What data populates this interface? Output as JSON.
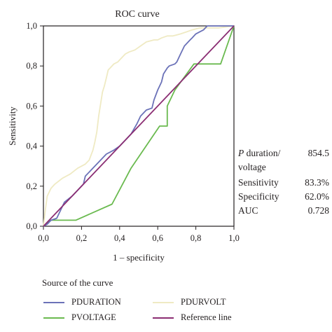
{
  "chart_data": {
    "type": "line",
    "title": "ROC curve",
    "xlabel": "1 – specificity",
    "ylabel": "Sensitivity",
    "xlim": [
      0,
      1
    ],
    "ylim": [
      0,
      1
    ],
    "xticks": [
      "0,0",
      "0,2",
      "0,4",
      "0,6",
      "0,8",
      "1,0"
    ],
    "yticks": [
      "0,0",
      "0,2",
      "0,4",
      "0,6",
      "0,8",
      "1,0"
    ],
    "grid": false,
    "legend_title": "Source of the curve",
    "legend_position": "bottom",
    "series": [
      {
        "name": "PDURATION",
        "color": "#6b72b8",
        "points": [
          [
            0,
            0
          ],
          [
            0.02,
            0.01
          ],
          [
            0.04,
            0.03
          ],
          [
            0.07,
            0.04
          ],
          [
            0.09,
            0.08
          ],
          [
            0.11,
            0.12
          ],
          [
            0.15,
            0.15
          ],
          [
            0.18,
            0.18
          ],
          [
            0.21,
            0.21
          ],
          [
            0.22,
            0.25
          ],
          [
            0.25,
            0.28
          ],
          [
            0.28,
            0.31
          ],
          [
            0.3,
            0.33
          ],
          [
            0.33,
            0.36
          ],
          [
            0.37,
            0.38
          ],
          [
            0.4,
            0.4
          ],
          [
            0.43,
            0.43
          ],
          [
            0.46,
            0.46
          ],
          [
            0.49,
            0.51
          ],
          [
            0.51,
            0.55
          ],
          [
            0.54,
            0.58
          ],
          [
            0.57,
            0.59
          ],
          [
            0.58,
            0.63
          ],
          [
            0.6,
            0.68
          ],
          [
            0.62,
            0.72
          ],
          [
            0.63,
            0.76
          ],
          [
            0.65,
            0.79
          ],
          [
            0.66,
            0.8
          ],
          [
            0.69,
            0.81
          ],
          [
            0.7,
            0.82
          ],
          [
            0.72,
            0.86
          ],
          [
            0.74,
            0.9
          ],
          [
            0.77,
            0.93
          ],
          [
            0.78,
            0.94
          ],
          [
            0.8,
            0.96
          ],
          [
            0.82,
            0.97
          ],
          [
            0.84,
            0.98
          ],
          [
            0.86,
            1.0
          ],
          [
            0.9,
            1.0
          ],
          [
            1.0,
            1.0
          ]
        ]
      },
      {
        "name": "PVOLTAGE",
        "color": "#6aba4f",
        "points": [
          [
            0,
            0
          ],
          [
            0.04,
            0.03
          ],
          [
            0.17,
            0.03
          ],
          [
            0.36,
            0.11
          ],
          [
            0.46,
            0.29
          ],
          [
            0.61,
            0.5
          ],
          [
            0.65,
            0.5
          ],
          [
            0.65,
            0.6
          ],
          [
            0.69,
            0.68
          ],
          [
            0.79,
            0.81
          ],
          [
            0.86,
            0.81
          ],
          [
            0.93,
            0.81
          ],
          [
            1.0,
            1.0
          ]
        ]
      },
      {
        "name": "PDURVOLT",
        "color": "#efeac3",
        "points": [
          [
            0,
            0
          ],
          [
            0.01,
            0.08
          ],
          [
            0.02,
            0.15
          ],
          [
            0.04,
            0.19
          ],
          [
            0.06,
            0.21
          ],
          [
            0.1,
            0.24
          ],
          [
            0.14,
            0.26
          ],
          [
            0.18,
            0.29
          ],
          [
            0.2,
            0.3
          ],
          [
            0.22,
            0.31
          ],
          [
            0.24,
            0.33
          ],
          [
            0.26,
            0.38
          ],
          [
            0.27,
            0.42
          ],
          [
            0.28,
            0.47
          ],
          [
            0.29,
            0.55
          ],
          [
            0.3,
            0.61
          ],
          [
            0.31,
            0.67
          ],
          [
            0.32,
            0.7
          ],
          [
            0.33,
            0.74
          ],
          [
            0.34,
            0.78
          ],
          [
            0.35,
            0.79
          ],
          [
            0.37,
            0.81
          ],
          [
            0.39,
            0.82
          ],
          [
            0.41,
            0.84
          ],
          [
            0.43,
            0.86
          ],
          [
            0.45,
            0.87
          ],
          [
            0.48,
            0.88
          ],
          [
            0.51,
            0.9
          ],
          [
            0.54,
            0.92
          ],
          [
            0.58,
            0.93
          ],
          [
            0.6,
            0.93
          ],
          [
            0.62,
            0.94
          ],
          [
            0.65,
            0.95
          ],
          [
            0.68,
            0.95
          ],
          [
            0.72,
            0.96
          ],
          [
            0.75,
            0.97
          ],
          [
            0.78,
            0.98
          ],
          [
            0.82,
            0.99
          ],
          [
            0.88,
            0.99
          ],
          [
            0.92,
            0.99
          ],
          [
            1.0,
            1.0
          ]
        ]
      },
      {
        "name": "Reference line",
        "color": "#8b2e73",
        "points": [
          [
            0,
            0
          ],
          [
            1,
            1
          ]
        ]
      }
    ]
  },
  "stats": {
    "p_label_italic": "P",
    "p_label_rest": " duration/",
    "p_label_line2": "voltage",
    "p_value": "854.5",
    "rows": [
      {
        "label": "Sensitivity",
        "value": "83.3%"
      },
      {
        "label": "Specificity",
        "value": "62.0%"
      },
      {
        "label": "AUC",
        "value": "0.728"
      }
    ]
  }
}
